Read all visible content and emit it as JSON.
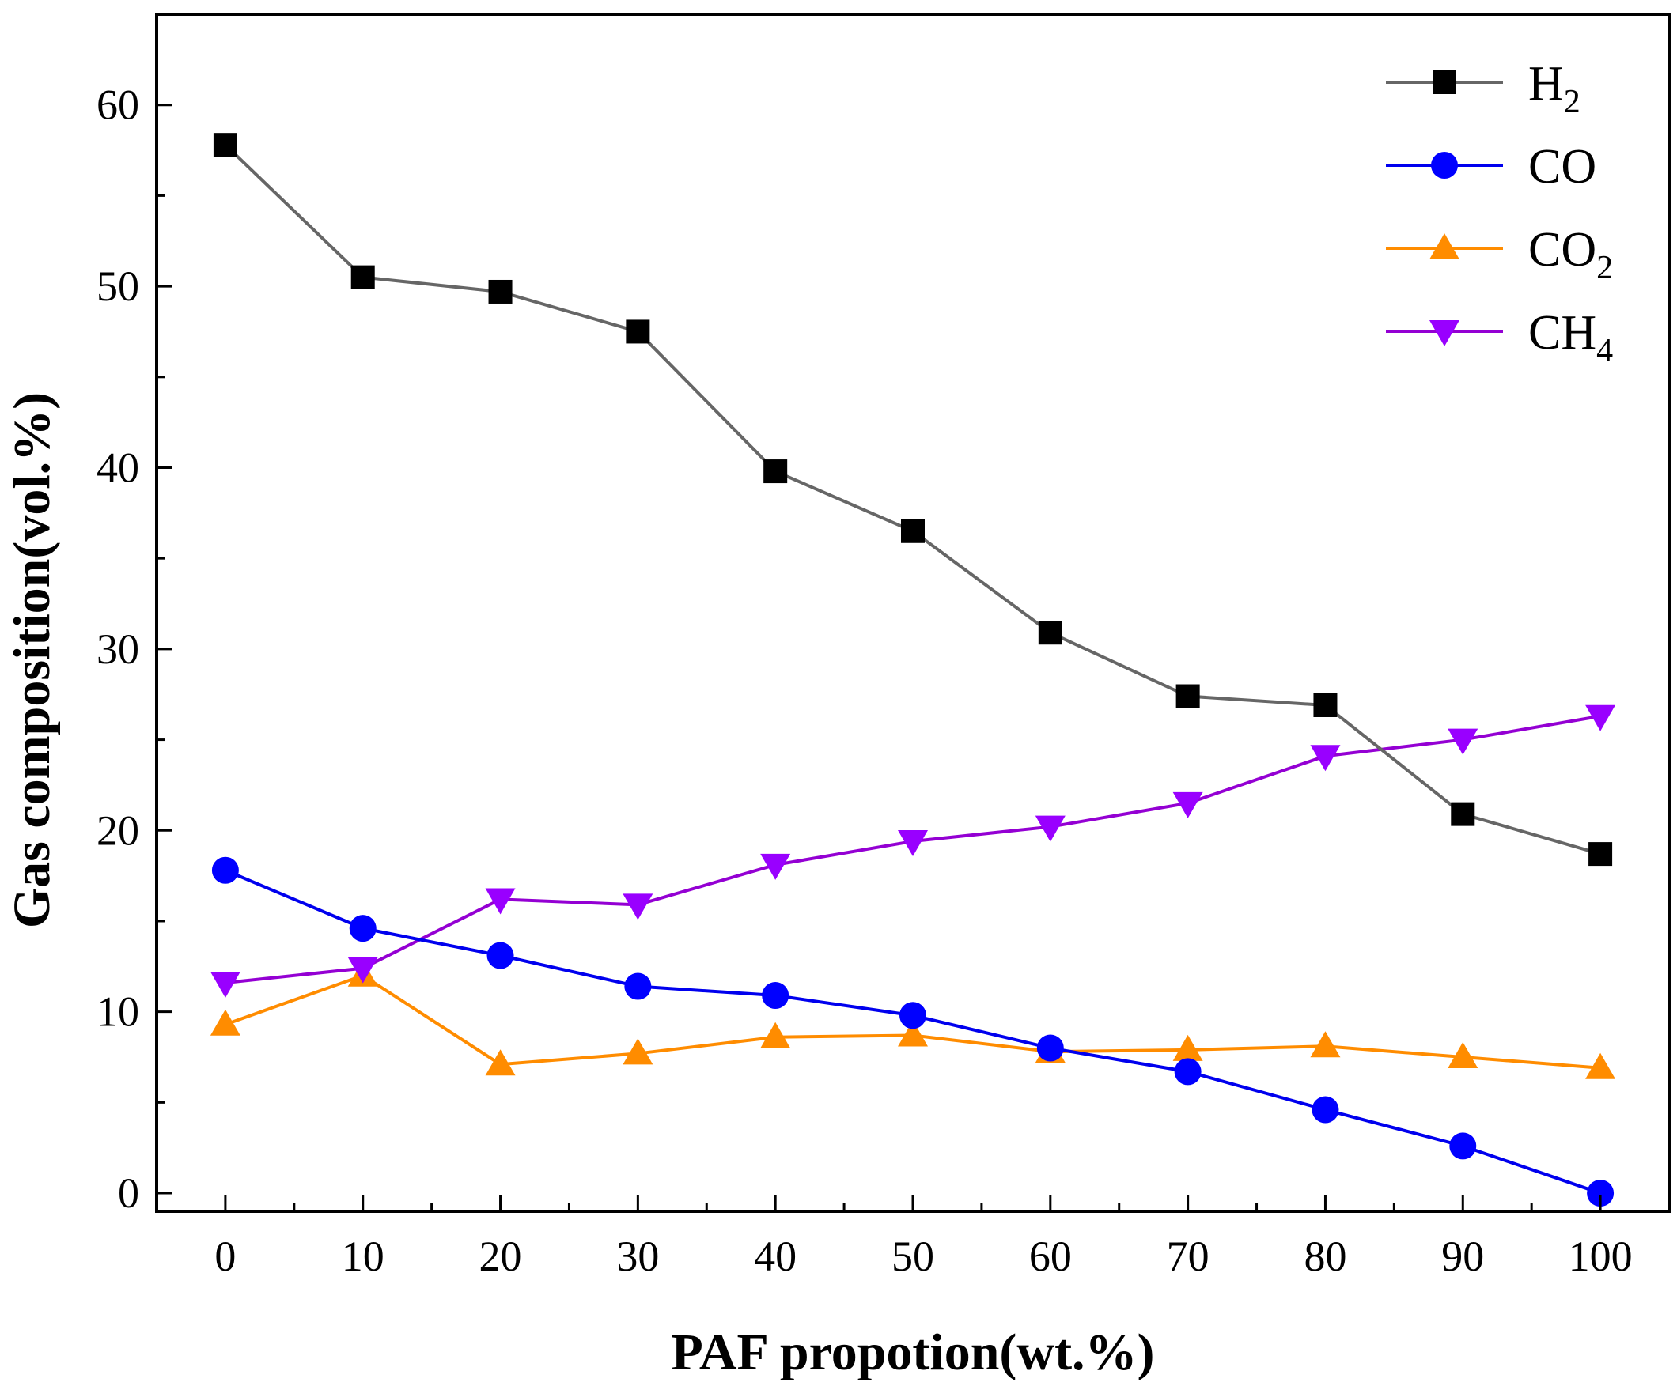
{
  "chart_data": {
    "type": "line",
    "title": "",
    "xlabel": "PAF propotion(wt.%)",
    "ylabel": "Gas composition(vol.%)",
    "xlim": [
      -5,
      105
    ],
    "ylim": [
      -1,
      65
    ],
    "x_ticks": [
      0,
      10,
      20,
      30,
      40,
      50,
      60,
      70,
      80,
      90,
      100
    ],
    "x_minor_ticks": [
      5,
      15,
      25,
      35,
      45,
      55,
      65,
      75,
      85,
      95
    ],
    "y_ticks": [
      0,
      10,
      20,
      30,
      40,
      50,
      60
    ],
    "y_minor_ticks": [
      5,
      15,
      25,
      35,
      45,
      55
    ],
    "x": [
      0,
      10,
      20,
      30,
      40,
      50,
      60,
      70,
      80,
      90,
      100
    ],
    "legend_position": "top-right",
    "grid": false,
    "series": [
      {
        "name": "H2",
        "label_main": "H",
        "label_sub": "2",
        "marker": "square",
        "line_color": "#666666",
        "marker_color": "#000000",
        "values": [
          57.8,
          50.5,
          49.7,
          47.5,
          39.8,
          36.5,
          30.9,
          27.4,
          26.9,
          20.9,
          18.7
        ]
      },
      {
        "name": "CO",
        "label_main": "CO",
        "label_sub": "",
        "marker": "circle",
        "line_color": "#0000ee",
        "marker_color": "#0000ff",
        "values": [
          17.8,
          14.6,
          13.1,
          11.4,
          10.9,
          9.8,
          8.0,
          6.7,
          4.6,
          2.6,
          0.0
        ]
      },
      {
        "name": "CO2",
        "label_main": "CO",
        "label_sub": "2",
        "marker": "triangle-up",
        "line_color": "#ff8c00",
        "marker_color": "#ff8c00",
        "values": [
          9.3,
          12.0,
          7.1,
          7.7,
          8.6,
          8.7,
          7.8,
          7.9,
          8.1,
          7.5,
          6.9
        ]
      },
      {
        "name": "CH4",
        "label_main": "CH",
        "label_sub": "4",
        "marker": "triangle-down",
        "line_color": "#9400d3",
        "marker_color": "#9900ff",
        "values": [
          11.6,
          12.4,
          16.2,
          15.9,
          18.1,
          19.4,
          20.2,
          21.5,
          24.1,
          25.0,
          26.3
        ]
      }
    ]
  }
}
